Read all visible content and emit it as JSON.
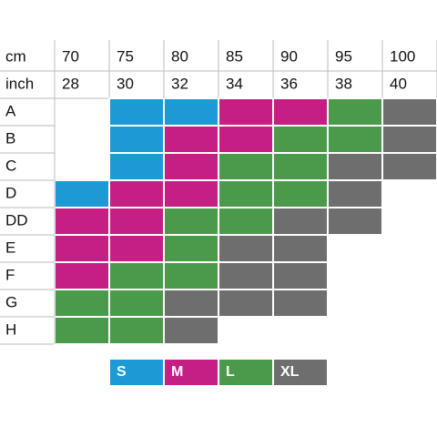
{
  "table": {
    "header": [
      {
        "label": "cm",
        "values": [
          70,
          75,
          80,
          85,
          90,
          95,
          100
        ]
      },
      {
        "label": "inch",
        "values": [
          28,
          30,
          32,
          34,
          36,
          38,
          40
        ]
      }
    ],
    "rows": [
      {
        "label": "A",
        "sizes": [
          null,
          "S",
          "S",
          "M",
          "M",
          "L",
          "XL"
        ]
      },
      {
        "label": "B",
        "sizes": [
          null,
          "S",
          "M",
          "M",
          "L",
          "L",
          "XL"
        ]
      },
      {
        "label": "C",
        "sizes": [
          null,
          "S",
          "M",
          "L",
          "L",
          "XL",
          "XL"
        ]
      },
      {
        "label": "D",
        "sizes": [
          "S",
          "M",
          "M",
          "L",
          "L",
          "XL",
          null
        ]
      },
      {
        "label": "DD",
        "sizes": [
          "M",
          "M",
          "L",
          "L",
          "XL",
          "XL",
          null
        ]
      },
      {
        "label": "E",
        "sizes": [
          "M",
          "M",
          "L",
          "XL",
          "XL",
          null,
          null
        ]
      },
      {
        "label": "F",
        "sizes": [
          "M",
          "L",
          "L",
          "XL",
          "XL",
          null,
          null
        ]
      },
      {
        "label": "G",
        "sizes": [
          "L",
          "L",
          "XL",
          "XL",
          "XL",
          null,
          null
        ]
      },
      {
        "label": "H",
        "sizes": [
          "L",
          "L",
          "XL",
          null,
          null,
          null,
          null
        ]
      }
    ],
    "legend": [
      {
        "label": "S",
        "color": "#1b9ad6"
      },
      {
        "label": "M",
        "color": "#c51f84"
      },
      {
        "label": "L",
        "color": "#4b9a4b"
      },
      {
        "label": "XL",
        "color": "#6e6e6e"
      }
    ]
  }
}
